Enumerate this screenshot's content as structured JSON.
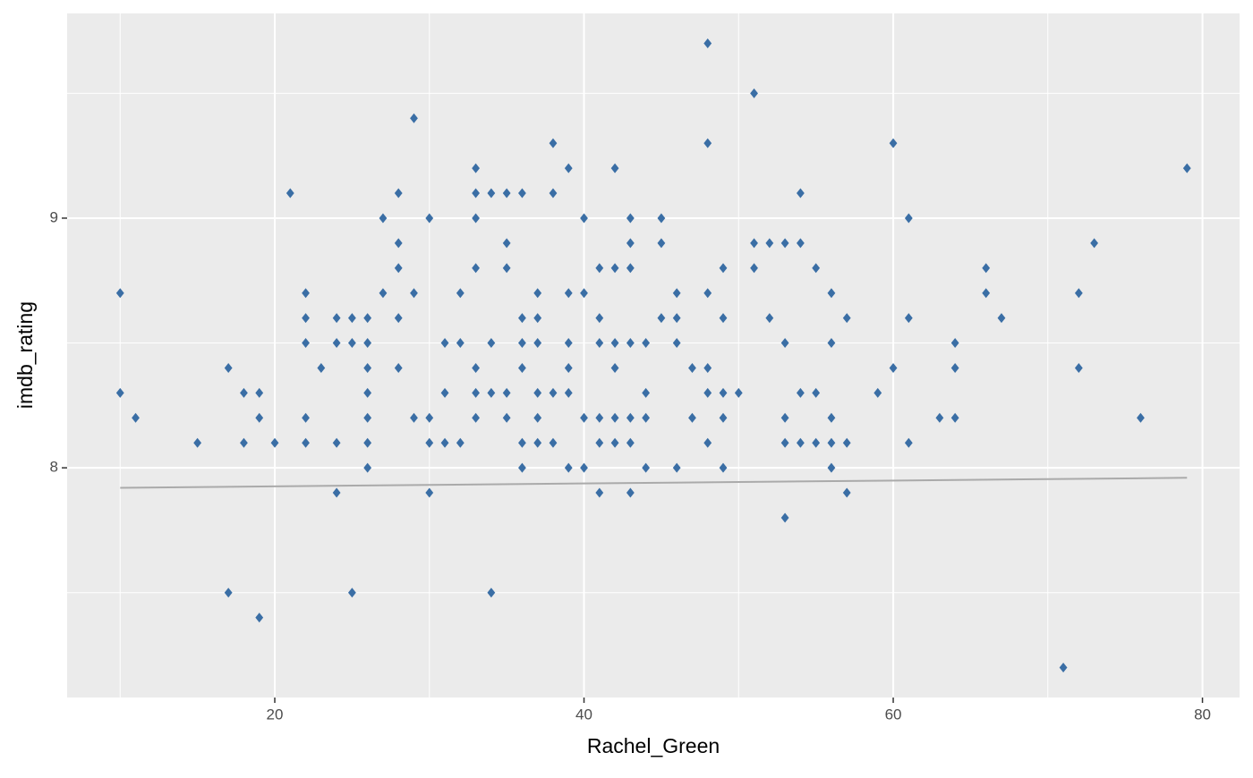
{
  "chart_data": {
    "type": "scatter",
    "x_label": "Rachel_Green",
    "y_label": "imdb_rating",
    "xlim": [
      6.57,
      82.4
    ],
    "ylim": [
      7.08,
      9.82
    ],
    "xticks": [
      20,
      40,
      60,
      80
    ],
    "yticks": [
      8,
      9
    ],
    "x_minor_grid": [
      10,
      30,
      50,
      70
    ],
    "y_minor_grid": [
      7.5,
      8.5,
      9.5
    ],
    "grid": true,
    "color": "#3a6ea5",
    "trend_line": {
      "x": [
        10,
        79
      ],
      "y": [
        7.92,
        7.96
      ],
      "color": "#aaaaaa"
    },
    "x": [
      10,
      10,
      11,
      15,
      17,
      17,
      18,
      18,
      19,
      19,
      19,
      20,
      21,
      22,
      22,
      22,
      22,
      22,
      23,
      24,
      24,
      24,
      24,
      25,
      25,
      25,
      26,
      26,
      26,
      26,
      26,
      26,
      26,
      27,
      27,
      28,
      28,
      28,
      28,
      28,
      29,
      29,
      29,
      30,
      30,
      30,
      30,
      31,
      31,
      31,
      32,
      32,
      32,
      33,
      33,
      33,
      33,
      33,
      33,
      33,
      34,
      34,
      34,
      34,
      35,
      35,
      35,
      35,
      35,
      36,
      36,
      36,
      36,
      36,
      36,
      37,
      37,
      37,
      37,
      37,
      37,
      38,
      38,
      38,
      38,
      39,
      39,
      39,
      39,
      39,
      39,
      40,
      40,
      40,
      40,
      41,
      41,
      41,
      41,
      41,
      41,
      42,
      42,
      42,
      42,
      42,
      42,
      43,
      43,
      43,
      43,
      43,
      43,
      43,
      44,
      44,
      44,
      44,
      45,
      45,
      45,
      46,
      46,
      46,
      46,
      47,
      47,
      48,
      48,
      48,
      48,
      48,
      48,
      49,
      49,
      49,
      49,
      49,
      50,
      51,
      51,
      51,
      52,
      52,
      53,
      53,
      53,
      53,
      53,
      54,
      54,
      54,
      54,
      55,
      55,
      55,
      56,
      56,
      56,
      56,
      56,
      57,
      57,
      57,
      59,
      60,
      60,
      61,
      61,
      61,
      63,
      64,
      64,
      64,
      66,
      66,
      67,
      71,
      72,
      72,
      73,
      76,
      79
    ],
    "y": [
      8.7,
      8.3,
      8.2,
      8.1,
      8.4,
      7.5,
      8.3,
      8.1,
      8.3,
      8.2,
      7.4,
      8.1,
      9.1,
      8.7,
      8.6,
      8.5,
      8.2,
      8.1,
      8.4,
      8.6,
      8.5,
      8.1,
      7.9,
      8.6,
      8.5,
      7.5,
      8.6,
      8.5,
      8.4,
      8.3,
      8.2,
      8.1,
      8.0,
      9.0,
      8.7,
      9.1,
      8.9,
      8.8,
      8.6,
      8.4,
      9.4,
      8.7,
      8.2,
      9.0,
      8.2,
      8.1,
      7.9,
      8.5,
      8.3,
      8.1,
      8.7,
      8.5,
      8.1,
      9.2,
      9.1,
      9.0,
      8.8,
      8.4,
      8.3,
      8.2,
      9.1,
      8.5,
      8.3,
      7.5,
      9.1,
      8.9,
      8.8,
      8.3,
      8.2,
      9.1,
      8.6,
      8.5,
      8.4,
      8.1,
      8.0,
      8.7,
      8.6,
      8.5,
      8.3,
      8.2,
      8.1,
      9.3,
      9.1,
      8.3,
      8.1,
      9.2,
      8.7,
      8.5,
      8.4,
      8.3,
      8.0,
      9.0,
      8.7,
      8.2,
      8.0,
      8.8,
      8.6,
      8.5,
      8.2,
      8.1,
      7.9,
      9.2,
      8.8,
      8.5,
      8.4,
      8.2,
      8.1,
      9.0,
      8.9,
      8.8,
      8.5,
      8.2,
      8.1,
      7.9,
      8.5,
      8.3,
      8.2,
      8.0,
      9.0,
      8.9,
      8.6,
      8.7,
      8.6,
      8.5,
      8.0,
      8.4,
      8.2,
      9.7,
      9.3,
      8.7,
      8.4,
      8.3,
      8.1,
      8.8,
      8.6,
      8.3,
      8.2,
      8.0,
      8.3,
      9.5,
      8.9,
      8.8,
      8.9,
      8.6,
      8.9,
      8.5,
      8.2,
      8.1,
      7.8,
      9.1,
      8.9,
      8.3,
      8.1,
      8.8,
      8.3,
      8.1,
      8.7,
      8.5,
      8.2,
      8.1,
      8.0,
      8.6,
      8.1,
      7.9,
      8.3,
      9.3,
      8.4,
      9.0,
      8.6,
      8.1,
      8.2,
      8.5,
      8.4,
      8.2,
      8.8,
      8.7,
      8.6,
      7.2,
      8.7,
      8.4,
      8.9,
      8.2,
      9.2
    ]
  }
}
